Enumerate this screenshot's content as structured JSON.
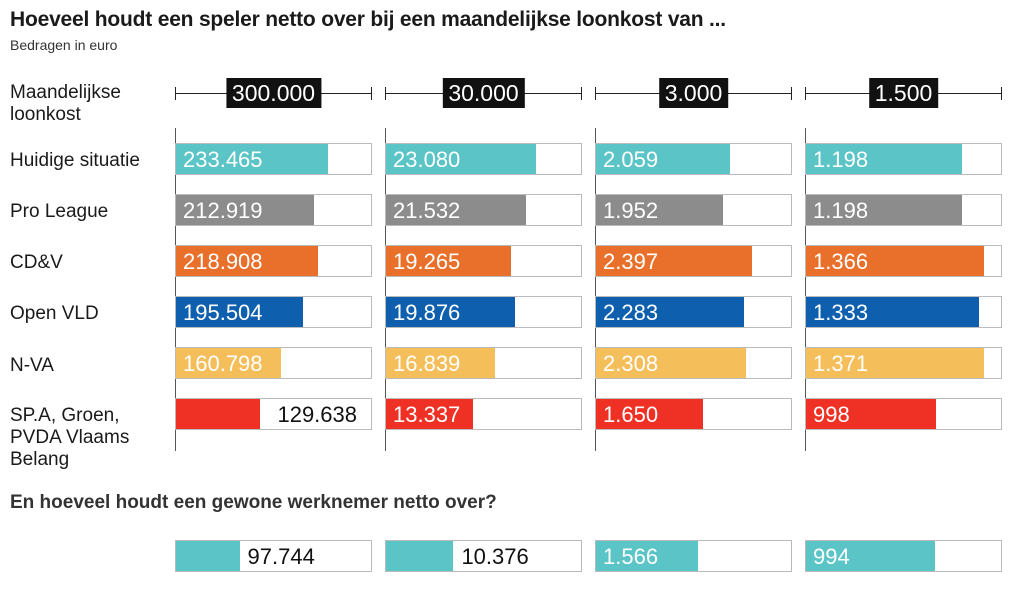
{
  "title": "Hoeveel houdt een speler netto over bij een maandelijkse loonkost van ...",
  "subtitle": "Bedragen in euro",
  "header_label": "Maandelijkse loonkost",
  "section2_title": "En hoeveel houdt een gewone werknemer netto over?",
  "colors": {
    "Huidige situatie": "#5bc4c6",
    "Pro League": "#8c8c8c",
    "CD&V": "#e8702a",
    "Open VLD": "#0f5faf",
    "N-VA": "#f4be5a",
    "SP.A, Groen, PVDA Vlaams Belang": "#ee3124",
    "werknemer": "#5bc4c6"
  },
  "chart_data": {
    "type": "bar",
    "columns": [
      "300.000",
      "30.000",
      "3.000",
      "1.500"
    ],
    "column_values": [
      300000,
      30000,
      3000,
      1500
    ],
    "series": [
      {
        "name": "Huidige situatie",
        "values": [
          233465,
          23080,
          2059,
          1198
        ],
        "labels": [
          "233.465",
          "23.080",
          "2.059",
          "1.198"
        ]
      },
      {
        "name": "Pro League",
        "values": [
          212919,
          21532,
          1952,
          1198
        ],
        "labels": [
          "212.919",
          "21.532",
          "1.952",
          "1.198"
        ]
      },
      {
        "name": "CD&V",
        "values": [
          218908,
          19265,
          2397,
          1366
        ],
        "labels": [
          "218.908",
          "19.265",
          "2.397",
          "1.366"
        ]
      },
      {
        "name": "Open VLD",
        "values": [
          195504,
          19876,
          2283,
          1333
        ],
        "labels": [
          "195.504",
          "19.876",
          "2.283",
          "1.333"
        ]
      },
      {
        "name": "N-VA",
        "values": [
          160798,
          16839,
          2308,
          1371
        ],
        "labels": [
          "160.798",
          "16.839",
          "2.308",
          "1.371"
        ]
      },
      {
        "name": "SP.A, Groen, PVDA Vlaams Belang",
        "values": [
          129638,
          13337,
          1650,
          998
        ],
        "labels": [
          "129.638",
          "13.337",
          "1.650",
          "998"
        ]
      }
    ],
    "werknemer": {
      "values": [
        97744,
        10376,
        1566,
        994
      ],
      "labels": [
        "97.744",
        "10.376",
        "1.566",
        "994"
      ]
    }
  }
}
